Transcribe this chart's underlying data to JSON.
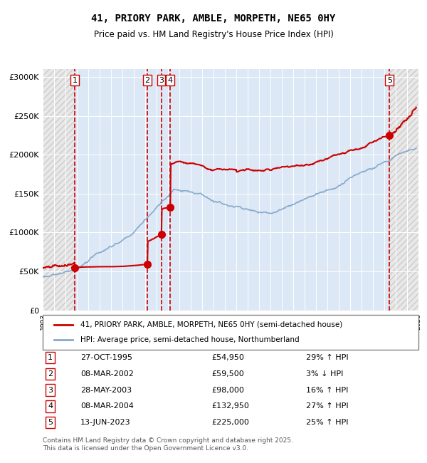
{
  "title": "41, PRIORY PARK, AMBLE, MORPETH, NE65 0HY",
  "subtitle": "Price paid vs. HM Land Registry's House Price Index (HPI)",
  "legend_line1": "41, PRIORY PARK, AMBLE, MORPETH, NE65 0HY (semi-detached house)",
  "legend_line2": "HPI: Average price, semi-detached house, Northumberland",
  "footer": "Contains HM Land Registry data © Crown copyright and database right 2025.\nThis data is licensed under the Open Government Licence v3.0.",
  "purchases": [
    {
      "num": 1,
      "date": "27-OCT-1995",
      "price": 54950,
      "pct": "29%",
      "dir": "↑",
      "x_year": 1995.82
    },
    {
      "num": 2,
      "date": "08-MAR-2002",
      "price": 59500,
      "pct": "3%",
      "dir": "↓",
      "x_year": 2002.19
    },
    {
      "num": 3,
      "date": "28-MAY-2003",
      "price": 98000,
      "pct": "16%",
      "dir": "↑",
      "x_year": 2003.41
    },
    {
      "num": 4,
      "date": "08-MAR-2004",
      "price": 132950,
      "pct": "27%",
      "dir": "↑",
      "x_year": 2004.19
    },
    {
      "num": 5,
      "date": "13-JUN-2023",
      "price": 225000,
      "pct": "25%",
      "dir": "↑",
      "x_year": 2023.45
    }
  ],
  "ylim": [
    0,
    310000
  ],
  "xlim_start": 1993.0,
  "xlim_end": 2026.0,
  "red_color": "#cc0000",
  "blue_color": "#88aacc",
  "hatch_color": "#cccccc",
  "bg_plot": "#dce8f5",
  "bg_hatch": "#e8e8e8",
  "grid_color": "#ffffff",
  "dashed_color": "#cc0000"
}
